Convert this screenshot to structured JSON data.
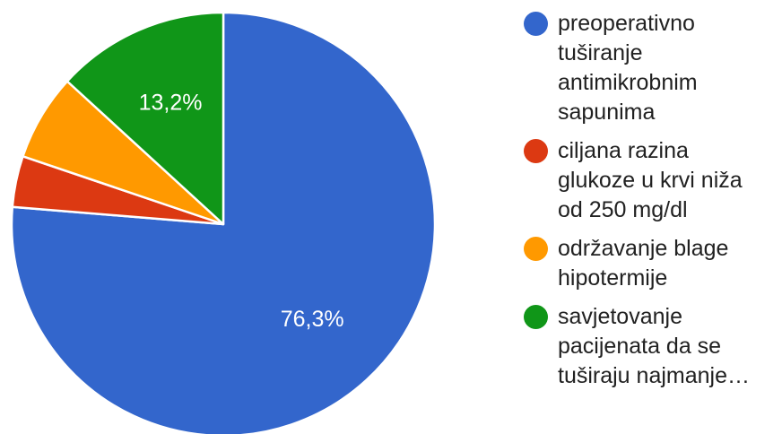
{
  "chart_data": {
    "type": "pie",
    "series": [
      {
        "name": "preoperativno tuširanje antimikrobnim sapunima",
        "value": 76.3,
        "color": "#3366cc",
        "label": "76,3%"
      },
      {
        "name": "ciljana razina glukoze u krvi niža od 250 mg/dl",
        "value": 3.9,
        "color": "#dc3912",
        "label": ""
      },
      {
        "name": "održavanje blage hipotermije",
        "value": 6.6,
        "color": "#ff9900",
        "label": ""
      },
      {
        "name": "savjetovanje pacijenata da se tuširaju najmanje…",
        "value": 13.2,
        "color": "#109618",
        "label": "13,2%"
      }
    ],
    "start_angle_deg": 0,
    "direction": "clockwise",
    "legend_position": "right"
  },
  "legend": {
    "items": [
      {
        "lines": [
          "preoperativno",
          "tuširanje",
          "antimikrobnim",
          "sapunima"
        ],
        "color": "#3366cc"
      },
      {
        "lines": [
          "ciljana razina",
          "glukoze u krvi niža",
          "od 250 mg/dl"
        ],
        "color": "#dc3912"
      },
      {
        "lines": [
          "održavanje blage",
          "hipotermije"
        ],
        "color": "#ff9900"
      },
      {
        "lines": [
          "savjetovanje",
          "pacijenata da se",
          "tuširaju najmanje…"
        ],
        "color": "#109618"
      }
    ]
  }
}
